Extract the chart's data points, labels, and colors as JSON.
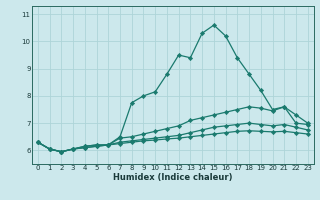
{
  "title": "",
  "xlabel": "Humidex (Indice chaleur)",
  "ylabel": "",
  "background_color": "#cce8ec",
  "grid_color": "#aed4d8",
  "line_color": "#1a7a6e",
  "xlim": [
    -0.5,
    23.5
  ],
  "ylim": [
    5.5,
    11.3
  ],
  "xticks": [
    0,
    1,
    2,
    3,
    4,
    5,
    6,
    7,
    8,
    9,
    10,
    11,
    12,
    13,
    14,
    15,
    16,
    17,
    18,
    19,
    20,
    21,
    22,
    23
  ],
  "yticks": [
    6,
    7,
    8,
    9,
    10,
    11
  ],
  "series": [
    [
      6.3,
      6.05,
      5.95,
      6.05,
      6.15,
      6.2,
      6.2,
      6.5,
      7.75,
      8.0,
      8.15,
      8.8,
      9.5,
      9.4,
      10.3,
      10.6,
      10.2,
      9.4,
      8.8,
      8.2,
      7.5,
      7.6,
      7.0,
      6.95
    ],
    [
      6.3,
      6.05,
      5.95,
      6.05,
      6.15,
      6.2,
      6.2,
      6.45,
      6.5,
      6.6,
      6.7,
      6.8,
      6.9,
      7.1,
      7.2,
      7.3,
      7.4,
      7.5,
      7.6,
      7.55,
      7.45,
      7.6,
      7.3,
      7.0
    ],
    [
      6.3,
      6.05,
      5.95,
      6.05,
      6.1,
      6.15,
      6.2,
      6.3,
      6.35,
      6.4,
      6.45,
      6.5,
      6.55,
      6.65,
      6.75,
      6.85,
      6.9,
      6.95,
      7.0,
      6.95,
      6.9,
      6.95,
      6.85,
      6.75
    ],
    [
      6.3,
      6.05,
      5.95,
      6.05,
      6.1,
      6.15,
      6.2,
      6.25,
      6.3,
      6.35,
      6.38,
      6.42,
      6.45,
      6.5,
      6.55,
      6.6,
      6.65,
      6.7,
      6.72,
      6.7,
      6.68,
      6.7,
      6.65,
      6.6
    ]
  ],
  "marker": "D",
  "markersize": 2.2,
  "linewidth": 0.9,
  "tick_fontsize": 5.0,
  "xlabel_fontsize": 6.0
}
